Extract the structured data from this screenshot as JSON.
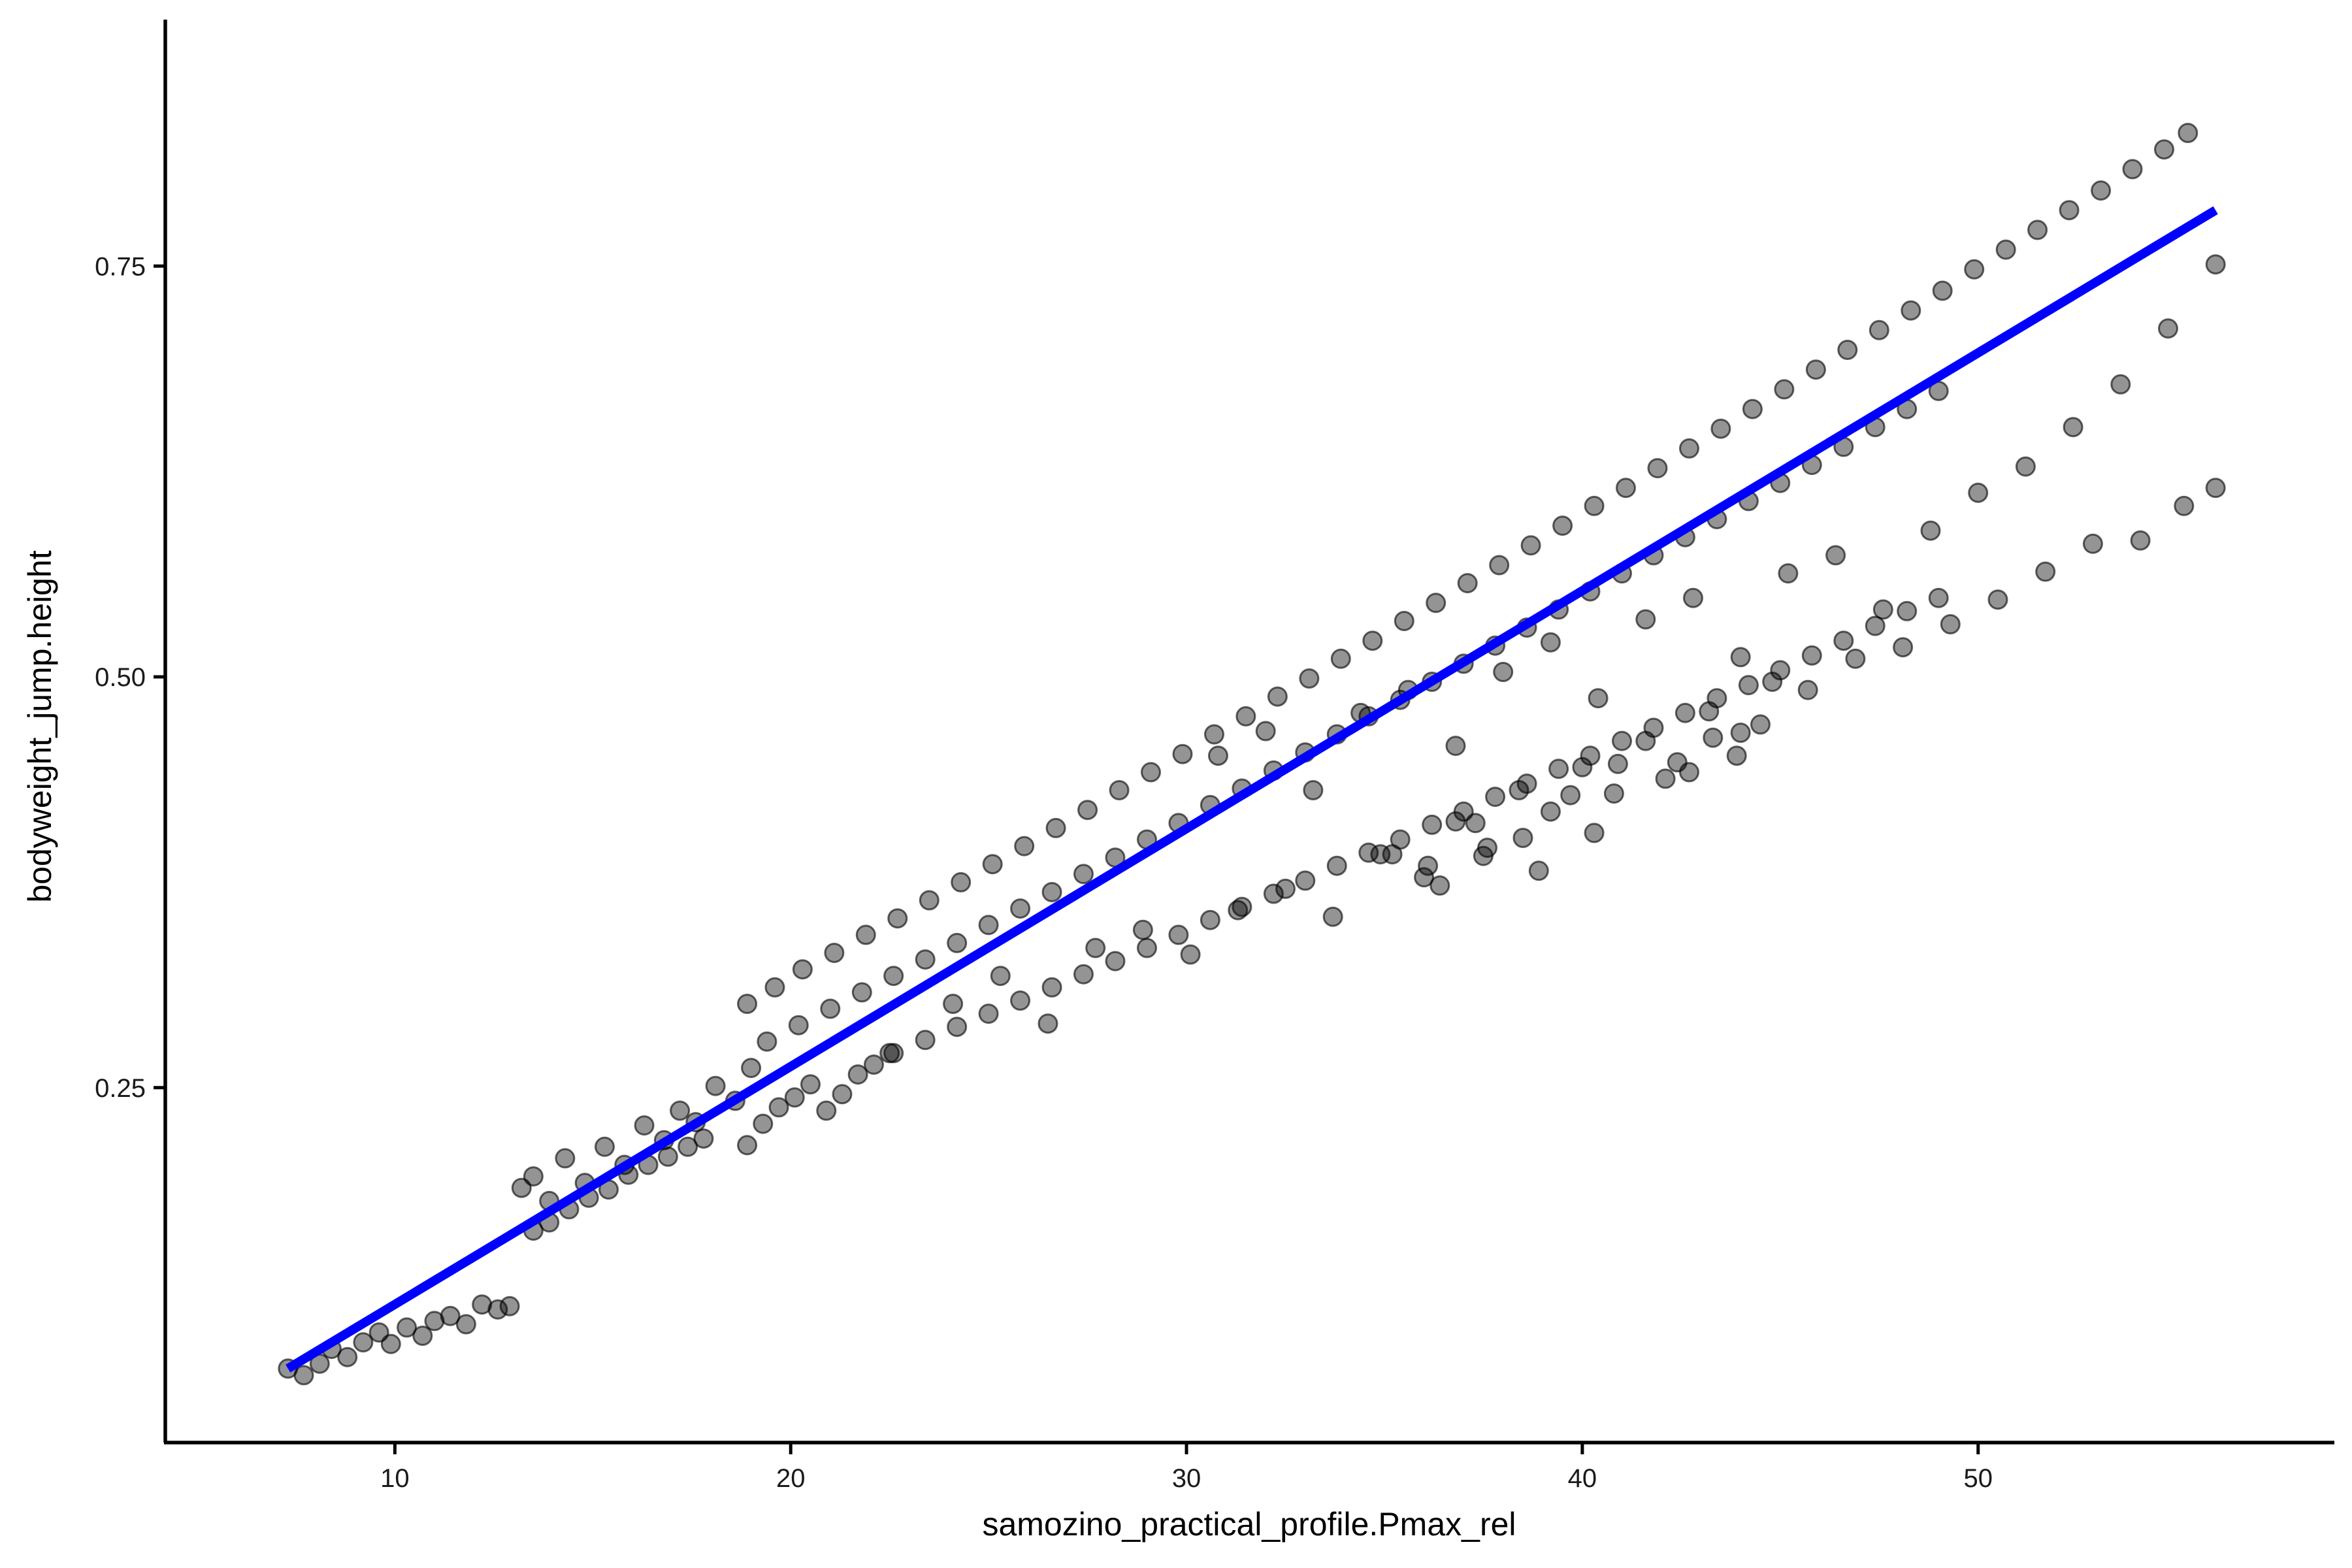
{
  "chart_data": {
    "type": "scatter",
    "title": "",
    "xlabel": "samozino_practical_profile.Pmax_rel",
    "ylabel": "bodyweight_jump.height",
    "xlim": [
      4.2,
      59.0
    ],
    "ylim": [
      0.034,
      0.9
    ],
    "x_ticks": [
      10,
      20,
      30,
      40,
      50
    ],
    "x_tick_labels": [
      "10",
      "20",
      "30",
      "40",
      "50"
    ],
    "y_ticks": [
      0.25,
      0.5,
      0.75
    ],
    "y_tick_labels": [
      "0.25",
      "0.50",
      "0.75"
    ],
    "grid": false,
    "legend": "none",
    "colors": {
      "points": "#000000",
      "fit_line": "#0000ff",
      "axes": "#000000"
    },
    "fit_line": {
      "x": [
        7.3,
        56.0
      ],
      "y": [
        0.079,
        0.784
      ]
    },
    "series": [
      {
        "points": [
          [
            7.3,
            0.079
          ],
          [
            7.7,
            0.075
          ],
          [
            8.1,
            0.082
          ],
          [
            8.4,
            0.091
          ],
          [
            8.8,
            0.086
          ],
          [
            9.2,
            0.095
          ],
          [
            9.6,
            0.101
          ],
          [
            9.9,
            0.094
          ],
          [
            10.3,
            0.104
          ],
          [
            10.7,
            0.099
          ],
          [
            11.0,
            0.108
          ],
          [
            11.4,
            0.111
          ],
          [
            11.8,
            0.106
          ],
          [
            12.2,
            0.118
          ],
          [
            12.6,
            0.115
          ],
          [
            12.9,
            0.117
          ],
          [
            13.2,
            0.189
          ],
          [
            13.5,
            0.196
          ],
          [
            13.9,
            0.181
          ],
          [
            14.3,
            0.207
          ],
          [
            14.8,
            0.192
          ],
          [
            15.3,
            0.214
          ],
          [
            15.8,
            0.203
          ],
          [
            16.3,
            0.227
          ],
          [
            16.8,
            0.218
          ],
          [
            17.2,
            0.236
          ],
          [
            17.6,
            0.229
          ],
          [
            18.1,
            0.251
          ],
          [
            18.6,
            0.242
          ],
          [
            19.0,
            0.262
          ],
          [
            13.5,
            0.163
          ],
          [
            13.9,
            0.168
          ],
          [
            14.4,
            0.176
          ],
          [
            14.9,
            0.183
          ],
          [
            15.4,
            0.188
          ],
          [
            15.9,
            0.197
          ],
          [
            16.4,
            0.203
          ],
          [
            16.9,
            0.208
          ],
          [
            17.4,
            0.214
          ],
          [
            17.8,
            0.219
          ],
          [
            18.9,
            0.215
          ],
          [
            19.3,
            0.228
          ],
          [
            19.7,
            0.238
          ],
          [
            20.1,
            0.244
          ],
          [
            20.5,
            0.252
          ],
          [
            20.9,
            0.236
          ],
          [
            21.3,
            0.246
          ],
          [
            21.7,
            0.258
          ],
          [
            22.1,
            0.264
          ],
          [
            22.5,
            0.271
          ],
          [
            18.9,
            0.301
          ],
          [
            19.6,
            0.311
          ],
          [
            20.3,
            0.322
          ],
          [
            21.1,
            0.332
          ],
          [
            21.9,
            0.343
          ],
          [
            22.7,
            0.353
          ],
          [
            23.5,
            0.364
          ],
          [
            24.3,
            0.375
          ],
          [
            25.1,
            0.386
          ],
          [
            25.9,
            0.397
          ],
          [
            26.7,
            0.408
          ],
          [
            27.5,
            0.419
          ],
          [
            28.3,
            0.431
          ],
          [
            29.1,
            0.442
          ],
          [
            29.9,
            0.453
          ],
          [
            30.7,
            0.465
          ],
          [
            31.5,
            0.476
          ],
          [
            32.3,
            0.488
          ],
          [
            33.1,
            0.499
          ],
          [
            33.9,
            0.511
          ],
          [
            34.7,
            0.522
          ],
          [
            35.5,
            0.534
          ],
          [
            36.3,
            0.545
          ],
          [
            37.1,
            0.557
          ],
          [
            37.9,
            0.568
          ],
          [
            38.7,
            0.58
          ],
          [
            39.5,
            0.592
          ],
          [
            40.3,
            0.604
          ],
          [
            41.1,
            0.615
          ],
          [
            41.9,
            0.627
          ],
          [
            42.7,
            0.639
          ],
          [
            43.5,
            0.651
          ],
          [
            44.3,
            0.663
          ],
          [
            45.1,
            0.675
          ],
          [
            45.9,
            0.687
          ],
          [
            46.7,
            0.699
          ],
          [
            47.5,
            0.711
          ],
          [
            48.3,
            0.723
          ],
          [
            49.1,
            0.735
          ],
          [
            49.9,
            0.748
          ],
          [
            50.7,
            0.76
          ],
          [
            51.5,
            0.772
          ],
          [
            52.3,
            0.784
          ],
          [
            53.1,
            0.796
          ],
          [
            53.9,
            0.809
          ],
          [
            54.7,
            0.821
          ],
          [
            55.3,
            0.831
          ],
          [
            19.4,
            0.278
          ],
          [
            20.2,
            0.288
          ],
          [
            21.0,
            0.298
          ],
          [
            21.8,
            0.308
          ],
          [
            22.6,
            0.318
          ],
          [
            23.4,
            0.328
          ],
          [
            24.2,
            0.338
          ],
          [
            25.0,
            0.349
          ],
          [
            25.8,
            0.359
          ],
          [
            26.6,
            0.369
          ],
          [
            27.4,
            0.38
          ],
          [
            28.2,
            0.39
          ],
          [
            29.0,
            0.401
          ],
          [
            29.8,
            0.411
          ],
          [
            30.6,
            0.422
          ],
          [
            31.4,
            0.432
          ],
          [
            32.2,
            0.443
          ],
          [
            33.0,
            0.454
          ],
          [
            33.8,
            0.465
          ],
          [
            34.6,
            0.476
          ],
          [
            35.4,
            0.486
          ],
          [
            36.2,
            0.497
          ],
          [
            37.0,
            0.508
          ],
          [
            37.8,
            0.519
          ],
          [
            38.6,
            0.53
          ],
          [
            39.4,
            0.541
          ],
          [
            40.2,
            0.552
          ],
          [
            41.0,
            0.563
          ],
          [
            41.8,
            0.574
          ],
          [
            42.6,
            0.585
          ],
          [
            43.4,
            0.596
          ],
          [
            44.2,
            0.607
          ],
          [
            45.0,
            0.618
          ],
          [
            45.8,
            0.629
          ],
          [
            46.6,
            0.64
          ],
          [
            47.4,
            0.652
          ],
          [
            48.2,
            0.663
          ],
          [
            49.0,
            0.674
          ],
          [
            22.6,
            0.271
          ],
          [
            23.4,
            0.279
          ],
          [
            24.2,
            0.287
          ],
          [
            25.0,
            0.295
          ],
          [
            25.8,
            0.303
          ],
          [
            26.6,
            0.311
          ],
          [
            27.4,
            0.319
          ],
          [
            28.2,
            0.327
          ],
          [
            29.0,
            0.335
          ],
          [
            29.8,
            0.343
          ],
          [
            30.6,
            0.352
          ],
          [
            31.4,
            0.36
          ],
          [
            32.2,
            0.368
          ],
          [
            33.0,
            0.376
          ],
          [
            33.8,
            0.385
          ],
          [
            34.6,
            0.393
          ],
          [
            35.4,
            0.401
          ],
          [
            36.2,
            0.41
          ],
          [
            37.0,
            0.418
          ],
          [
            37.8,
            0.427
          ],
          [
            38.6,
            0.435
          ],
          [
            39.4,
            0.444
          ],
          [
            40.2,
            0.452
          ],
          [
            41.0,
            0.461
          ],
          [
            41.8,
            0.469
          ],
          [
            42.6,
            0.478
          ],
          [
            43.4,
            0.487
          ],
          [
            44.2,
            0.495
          ],
          [
            45.0,
            0.504
          ],
          [
            45.8,
            0.513
          ],
          [
            46.6,
            0.522
          ],
          [
            47.4,
            0.531
          ],
          [
            48.2,
            0.54
          ],
          [
            49.0,
            0.548
          ],
          [
            24.1,
            0.301
          ],
          [
            25.3,
            0.318
          ],
          [
            26.5,
            0.289
          ],
          [
            27.7,
            0.335
          ],
          [
            28.9,
            0.346
          ],
          [
            30.1,
            0.331
          ],
          [
            31.3,
            0.358
          ],
          [
            32.5,
            0.371
          ],
          [
            33.7,
            0.354
          ],
          [
            34.9,
            0.392
          ],
          [
            36.1,
            0.385
          ],
          [
            37.3,
            0.411
          ],
          [
            38.5,
            0.402
          ],
          [
            39.7,
            0.428
          ],
          [
            40.9,
            0.447
          ],
          [
            42.1,
            0.438
          ],
          [
            43.3,
            0.463
          ],
          [
            44.5,
            0.471
          ],
          [
            45.7,
            0.492
          ],
          [
            46.9,
            0.511
          ],
          [
            48.1,
            0.518
          ],
          [
            49.3,
            0.532
          ],
          [
            50.5,
            0.547
          ],
          [
            51.7,
            0.564
          ],
          [
            52.9,
            0.581
          ],
          [
            54.1,
            0.583
          ],
          [
            55.2,
            0.604
          ],
          [
            56.0,
            0.615
          ],
          [
            30.8,
            0.452
          ],
          [
            32.0,
            0.467
          ],
          [
            33.2,
            0.431
          ],
          [
            34.4,
            0.478
          ],
          [
            35.6,
            0.492
          ],
          [
            36.8,
            0.458
          ],
          [
            38.0,
            0.503
          ],
          [
            39.2,
            0.521
          ],
          [
            40.4,
            0.487
          ],
          [
            41.6,
            0.535
          ],
          [
            42.8,
            0.548
          ],
          [
            44.0,
            0.512
          ],
          [
            45.2,
            0.563
          ],
          [
            46.4,
            0.574
          ],
          [
            47.6,
            0.541
          ],
          [
            48.8,
            0.589
          ],
          [
            50.0,
            0.612
          ],
          [
            51.2,
            0.628
          ],
          [
            52.4,
            0.652
          ],
          [
            53.6,
            0.678
          ],
          [
            54.8,
            0.712
          ],
          [
            56.0,
            0.751
          ],
          [
            35.2,
            0.392
          ],
          [
            36.0,
            0.378
          ],
          [
            36.8,
            0.412
          ],
          [
            37.6,
            0.396
          ],
          [
            38.4,
            0.431
          ],
          [
            39.2,
            0.418
          ],
          [
            40.0,
            0.445
          ],
          [
            40.8,
            0.429
          ],
          [
            41.6,
            0.461
          ],
          [
            42.4,
            0.448
          ],
          [
            43.2,
            0.479
          ],
          [
            44.0,
            0.466
          ],
          [
            44.8,
            0.497
          ],
          [
            36.4,
            0.373
          ],
          [
            37.5,
            0.391
          ],
          [
            38.9,
            0.382
          ],
          [
            40.3,
            0.405
          ],
          [
            42.7,
            0.442
          ],
          [
            43.9,
            0.452
          ]
        ]
      }
    ]
  }
}
